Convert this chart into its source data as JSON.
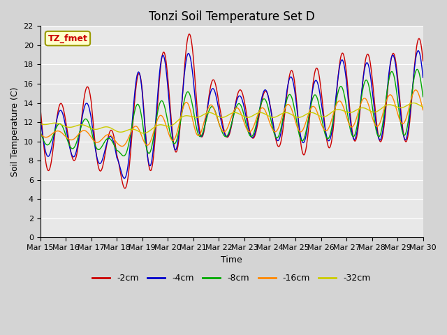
{
  "title": "Tonzi Soil Temperature Set D",
  "xlabel": "Time",
  "ylabel": "Soil Temperature (C)",
  "annotation": "TZ_fmet",
  "ylim": [
    0,
    22
  ],
  "yticks": [
    0,
    2,
    4,
    6,
    8,
    10,
    12,
    14,
    16,
    18,
    20,
    22
  ],
  "plot_bg_color": "#e8e8e8",
  "fig_bg_color": "#d4d4d4",
  "series_colors": [
    "#cc0000",
    "#0000cc",
    "#00aa00",
    "#ff8800",
    "#cccc00"
  ],
  "series_labels": [
    "-2cm",
    "-4cm",
    "-8cm",
    "-16cm",
    "-32cm"
  ],
  "xtick_positions": [
    15,
    16,
    17,
    18,
    19,
    20,
    21,
    22,
    23,
    24,
    25,
    26,
    27,
    28,
    29,
    30
  ],
  "xtick_labels": [
    "Mar 15",
    "Mar 16",
    "Mar 17",
    "Mar 18",
    "Mar 19",
    "Mar 20",
    "Mar 21",
    "Mar 22",
    "Mar 23",
    "Mar 24",
    "Mar 25",
    "Mar 26",
    "Mar 27",
    "Mar 28",
    "Mar 29",
    "Mar 30"
  ],
  "grid_color": "#ffffff",
  "title_fontsize": 12,
  "axis_fontsize": 9,
  "tick_fontsize": 8,
  "legend_fontsize": 9
}
